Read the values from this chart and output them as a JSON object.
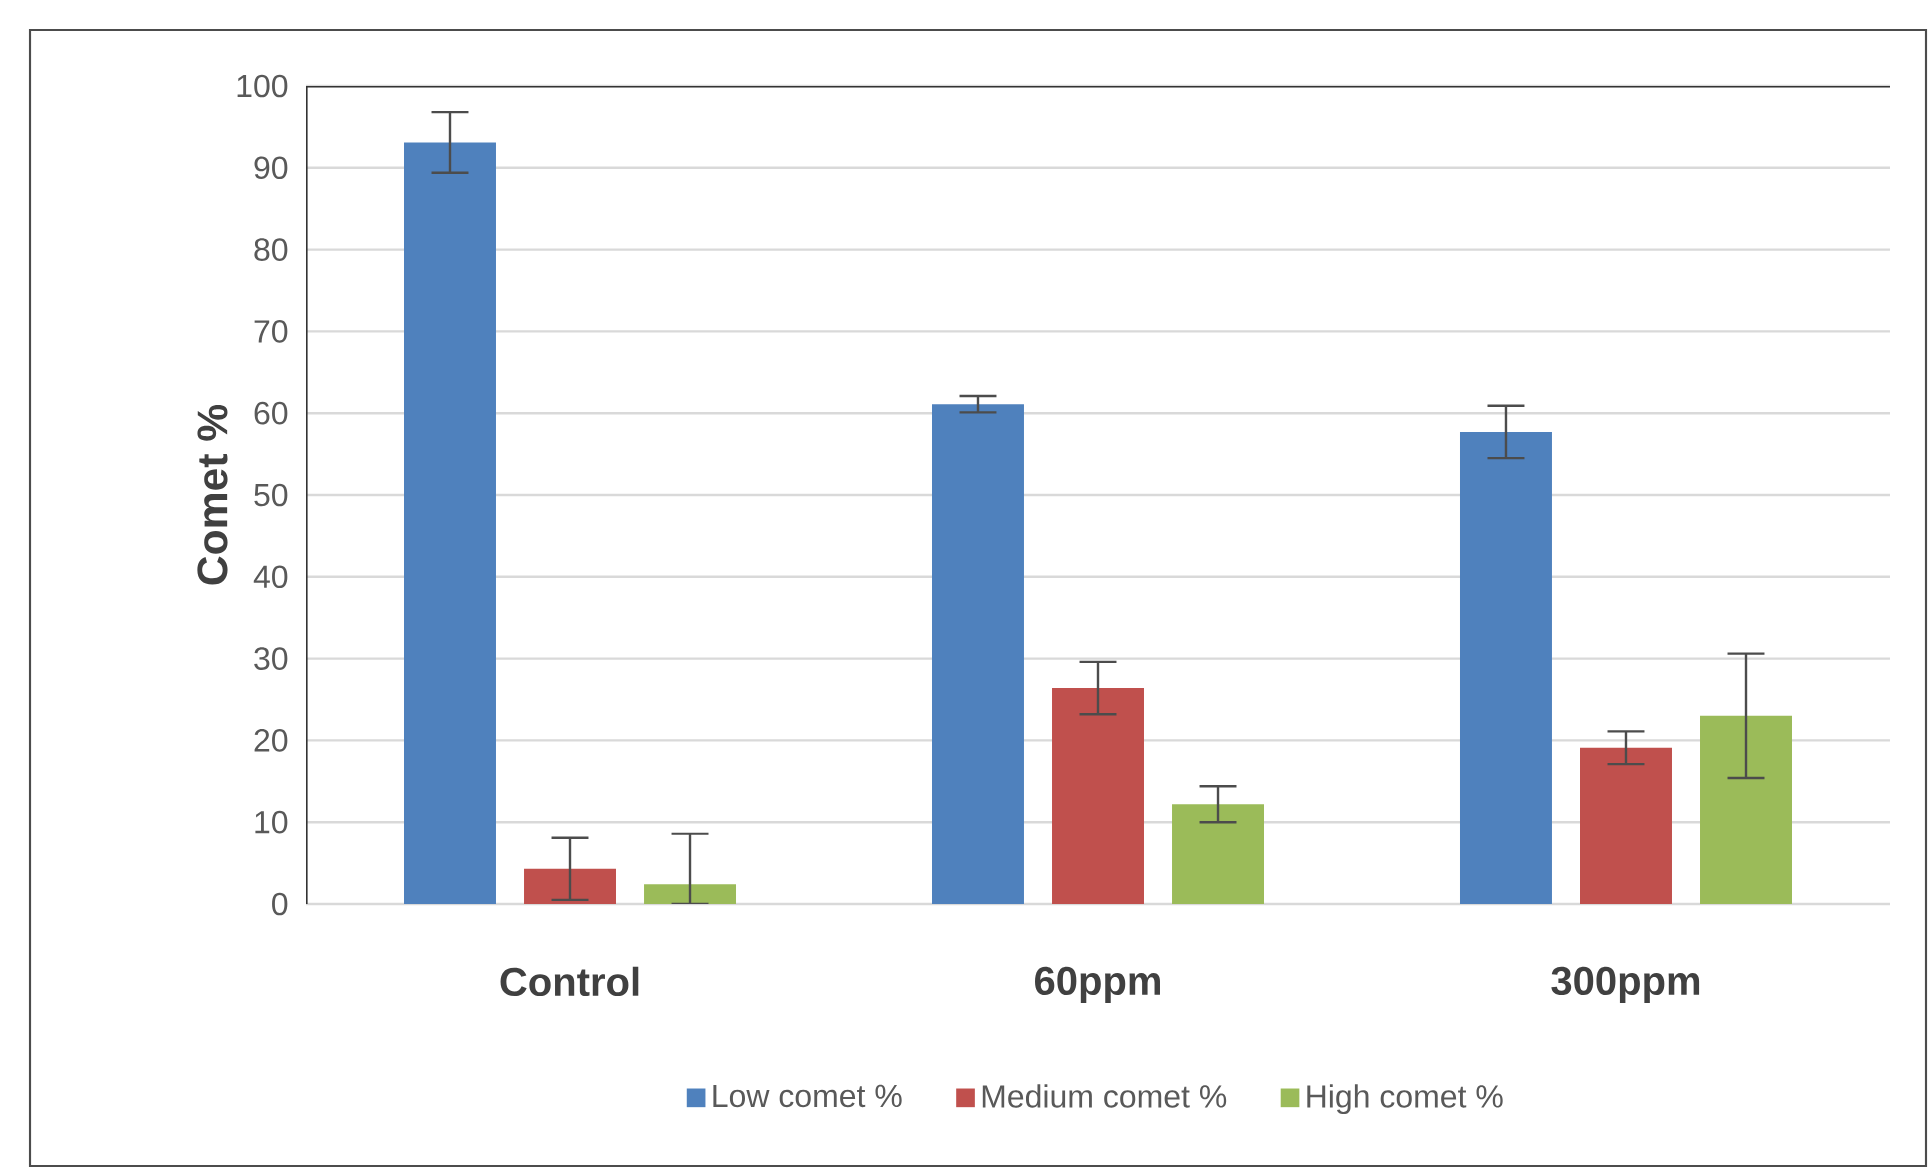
{
  "chart_data": {
    "type": "bar",
    "ylabel": "Comet %",
    "categories": [
      "Control",
      "60ppm",
      "300ppm"
    ],
    "series": [
      {
        "name": "Low comet %",
        "color": "#4f81bd",
        "values": [
          93.1,
          61.1,
          57.7
        ],
        "errors": [
          3.7,
          1.0,
          3.2
        ]
      },
      {
        "name": "Medium comet %",
        "color": "#c0504d",
        "values": [
          4.3,
          26.4,
          19.1
        ],
        "errors": [
          3.8,
          3.2,
          2.0
        ]
      },
      {
        "name": "High comet %",
        "color": "#9bbb59",
        "values": [
          2.4,
          12.2,
          23.0
        ],
        "errors": [
          [
            0,
            8.6
          ],
          2.2,
          7.6
        ]
      }
    ],
    "ylim": [
      0,
      100
    ],
    "yticks": [
      0,
      10,
      20,
      30,
      40,
      50,
      60,
      70,
      80,
      90,
      100
    ],
    "grid": "y",
    "legend": "bottom"
  }
}
